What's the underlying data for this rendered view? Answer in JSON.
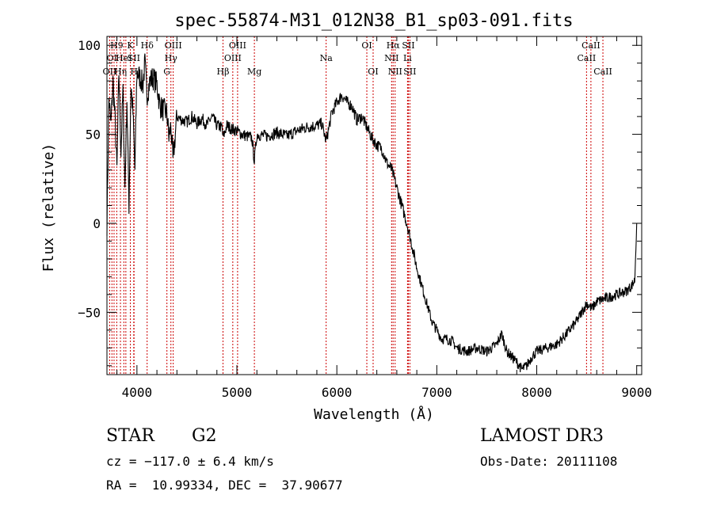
{
  "chart_data": {
    "type": "line",
    "title": "spec-55874-M31_012N38_B1_sp03-091.fits",
    "xlabel": "Wavelength (Å)",
    "ylabel": "Flux (relative)",
    "xlim": [
      3700,
      9050
    ],
    "ylim": [
      -85,
      105
    ],
    "xticks": [
      4000,
      5000,
      6000,
      7000,
      8000,
      9000
    ],
    "yticks": [
      -50,
      0,
      50,
      100
    ],
    "series": [
      {
        "name": "flux",
        "x": [
          3700,
          3720,
          3740,
          3760,
          3780,
          3800,
          3820,
          3840,
          3860,
          3880,
          3900,
          3920,
          3940,
          3960,
          3980,
          4000,
          4030,
          4060,
          4080,
          4100,
          4130,
          4160,
          4200,
          4230,
          4260,
          4300,
          4320,
          4340,
          4360,
          4400,
          4450,
          4500,
          4550,
          4600,
          4650,
          4700,
          4750,
          4800,
          4850,
          4861,
          4900,
          4950,
          5000,
          5050,
          5100,
          5150,
          5175,
          5200,
          5300,
          5400,
          5500,
          5600,
          5700,
          5800,
          5850,
          5893,
          5950,
          6000,
          6050,
          6100,
          6150,
          6200,
          6250,
          6300,
          6350,
          6400,
          6450,
          6500,
          6550,
          6600,
          6650,
          6700,
          6750,
          6800,
          6850,
          6900,
          6950,
          7000,
          7050,
          7100,
          7150,
          7200,
          7300,
          7400,
          7500,
          7600,
          7650,
          7700,
          7750,
          7800,
          7850,
          7900,
          7950,
          8000,
          8100,
          8200,
          8300,
          8400,
          8500,
          8550,
          8600,
          8700,
          8800,
          8900,
          8950,
          8980,
          9000
        ],
        "y": [
          0,
          70,
          55,
          80,
          60,
          30,
          85,
          40,
          75,
          20,
          70,
          10,
          78,
          62,
          30,
          85,
          82,
          78,
          90,
          72,
          80,
          82,
          78,
          66,
          64,
          62,
          48,
          55,
          35,
          60,
          58,
          57,
          60,
          56,
          59,
          55,
          60,
          55,
          54,
          48,
          55,
          53,
          52,
          50,
          49,
          48,
          35,
          50,
          49,
          51,
          49,
          52,
          54,
          55,
          56,
          46,
          62,
          68,
          72,
          68,
          66,
          58,
          60,
          54,
          48,
          44,
          42,
          34,
          30,
          20,
          10,
          0,
          -12,
          -25,
          -35,
          -45,
          -55,
          -60,
          -65,
          -65,
          -66,
          -70,
          -72,
          -70,
          -72,
          -68,
          -62,
          -72,
          -75,
          -78,
          -82,
          -80,
          -75,
          -72,
          -70,
          -68,
          -62,
          -55,
          -45,
          -48,
          -44,
          -42,
          -40,
          -38,
          -35,
          -32,
          0
        ]
      }
    ],
    "lines": [
      {
        "wave": 3727,
        "label": "OII",
        "row": 3
      },
      {
        "wave": 3750,
        "label": "OI",
        "row": 2
      },
      {
        "wave": 3771,
        "label": "",
        "row": 0
      },
      {
        "wave": 3798,
        "label": "H9",
        "row": 1
      },
      {
        "wave": 3835,
        "label": "Hη",
        "row": 3
      },
      {
        "wave": 3869,
        "label": "HeI",
        "row": 2
      },
      {
        "wave": 3889,
        "label": "",
        "row": 0
      },
      {
        "wave": 3934,
        "label": "K",
        "row": 1
      },
      {
        "wave": 3968,
        "label": "SII",
        "row": 2
      },
      {
        "wave": 3971,
        "label": "H",
        "row": 3
      },
      {
        "wave": 4102,
        "label": "Hδ",
        "row": 1
      },
      {
        "wave": 4300,
        "label": "G",
        "row": 3
      },
      {
        "wave": 4340,
        "label": "Hγ",
        "row": 2
      },
      {
        "wave": 4363,
        "label": "OIII",
        "row": 1
      },
      {
        "wave": 4861,
        "label": "Hβ",
        "row": 3
      },
      {
        "wave": 4959,
        "label": "OIII",
        "row": 2
      },
      {
        "wave": 5007,
        "label": "OIII",
        "row": 1
      },
      {
        "wave": 5175,
        "label": "Mg",
        "row": 3
      },
      {
        "wave": 5893,
        "label": "Na",
        "row": 2
      },
      {
        "wave": 6300,
        "label": "OI",
        "row": 1
      },
      {
        "wave": 6363,
        "label": "OI",
        "row": 3
      },
      {
        "wave": 6548,
        "label": "NII",
        "row": 2
      },
      {
        "wave": 6563,
        "label": "Hα",
        "row": 1
      },
      {
        "wave": 6583,
        "label": "NII",
        "row": 3
      },
      {
        "wave": 6707,
        "label": "Li",
        "row": 2
      },
      {
        "wave": 6716,
        "label": "SII",
        "row": 1
      },
      {
        "wave": 6731,
        "label": "SII",
        "row": 3
      },
      {
        "wave": 8498,
        "label": "CaII",
        "row": 2
      },
      {
        "wave": 8542,
        "label": "CaII",
        "row": 1
      },
      {
        "wave": 8662,
        "label": "CaII",
        "row": 3
      }
    ]
  },
  "info": {
    "class": "STAR",
    "subclass": "G2",
    "survey": "LAMOST DR3",
    "cz": "cz = −117.0 ± 6.4 km/s",
    "obs_date": "Obs-Date: 20111108",
    "radec": "RA =  10.99334, DEC =  37.90677"
  },
  "colors": {
    "line_marker": "#cc0000",
    "spectrum": "#000000"
  }
}
